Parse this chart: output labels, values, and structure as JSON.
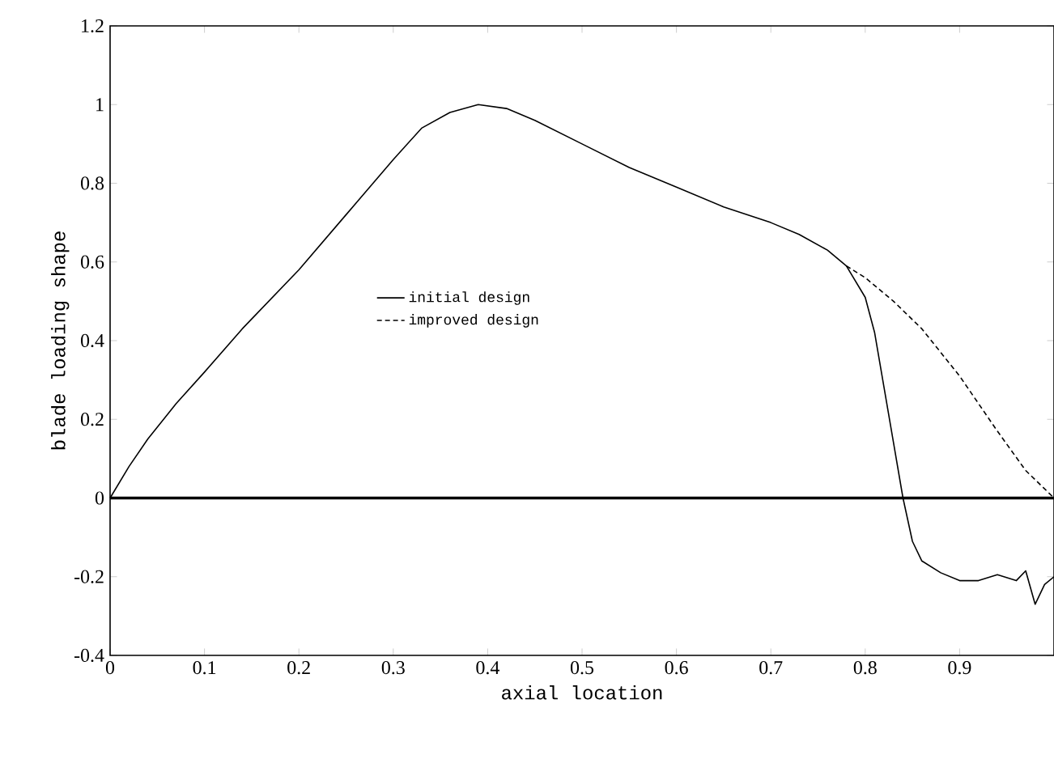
{
  "chart_data": {
    "type": "line",
    "xlabel": "axial location",
    "ylabel": "blade loading shape",
    "xlim": [
      0,
      1
    ],
    "ylim": [
      -0.4,
      1.2
    ],
    "xticks": [
      0,
      0.1,
      0.2,
      0.3,
      0.4,
      0.5,
      0.6,
      0.7,
      0.8,
      0.9,
      {
        "value": 1,
        "label": null
      }
    ],
    "yticks": [
      -0.4,
      -0.2,
      0,
      0.2,
      0.4,
      0.6,
      0.8,
      1,
      1.2
    ],
    "legend": "center",
    "grid": false,
    "marker": "none",
    "ref_lines": [
      {
        "axis": "y",
        "value": 0,
        "color": "#000000"
      }
    ],
    "series": [
      {
        "name": "initial design",
        "color": "#000000",
        "line_style": "solid",
        "x": [
          0,
          0.02,
          0.04,
          0.07,
          0.1,
          0.14,
          0.2,
          0.25,
          0.3,
          0.33,
          0.36,
          0.39,
          0.42,
          0.45,
          0.5,
          0.55,
          0.6,
          0.65,
          0.7,
          0.73,
          0.76,
          0.78,
          0.8,
          0.81,
          0.82,
          0.83,
          0.84,
          0.85,
          0.86,
          0.88,
          0.9,
          0.92,
          0.94,
          0.96,
          0.97,
          0.98,
          0.99,
          1.0
        ],
        "values": [
          0,
          0.08,
          0.15,
          0.24,
          0.32,
          0.43,
          0.58,
          0.72,
          0.86,
          0.94,
          0.98,
          1.0,
          0.99,
          0.96,
          0.9,
          0.84,
          0.79,
          0.74,
          0.7,
          0.67,
          0.63,
          0.59,
          0.51,
          0.42,
          0.28,
          0.14,
          0.0,
          -0.11,
          -0.16,
          -0.19,
          -0.21,
          -0.21,
          -0.195,
          -0.21,
          -0.185,
          -0.27,
          -0.22,
          -0.2
        ]
      },
      {
        "name": "improved design",
        "color": "#000000",
        "line_style": "dashed",
        "x": [
          0.78,
          0.8,
          0.83,
          0.86,
          0.9,
          0.94,
          0.97,
          1.0
        ],
        "values": [
          0.59,
          0.56,
          0.5,
          0.43,
          0.31,
          0.17,
          0.07,
          0.0
        ]
      }
    ]
  }
}
